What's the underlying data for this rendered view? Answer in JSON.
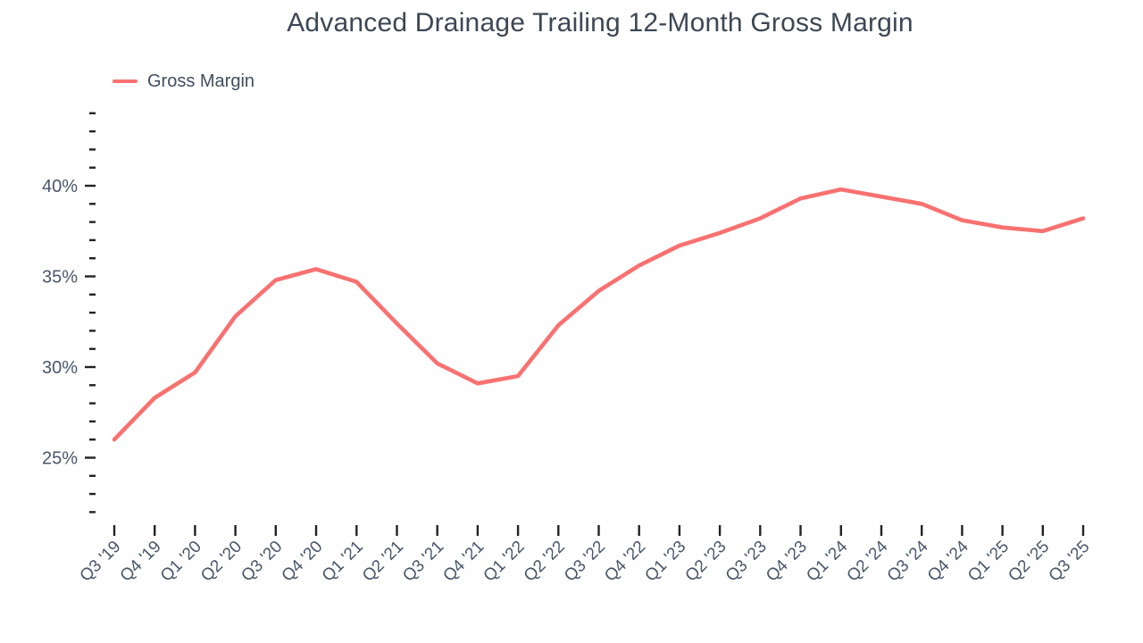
{
  "title": "Advanced Drainage Trailing 12-Month Gross Margin",
  "legend": {
    "label": "Gross Margin",
    "color": "#f87171"
  },
  "colors": {
    "line": "#f87171",
    "title_text": "#3d4754",
    "axis_text": "#49566a",
    "tick": "#222222",
    "background": "#ffffff"
  },
  "chart_data": {
    "type": "line",
    "title": "Advanced Drainage Trailing 12-Month Gross Margin",
    "xlabel": "",
    "ylabel": "",
    "grid": false,
    "legend_position": "top-left",
    "series_name": "Gross Margin",
    "categories": [
      "Q3 '19",
      "Q4 '19",
      "Q1 '20",
      "Q2 '20",
      "Q3 '20",
      "Q4 '20",
      "Q1 '21",
      "Q2 '21",
      "Q3 '21",
      "Q4 '21",
      "Q1 '22",
      "Q2 '22",
      "Q3 '22",
      "Q4 '22",
      "Q1 '23",
      "Q2 '23",
      "Q3 '23",
      "Q4 '23",
      "Q1 '24",
      "Q2 '24",
      "Q3 '24",
      "Q4 '24",
      "Q1 '25",
      "Q2 '25",
      "Q3 '25"
    ],
    "values": [
      26.0,
      28.3,
      29.7,
      32.8,
      34.8,
      35.4,
      34.7,
      32.4,
      30.2,
      29.1,
      29.5,
      32.3,
      34.2,
      35.6,
      36.7,
      37.4,
      38.2,
      39.3,
      39.8,
      39.4,
      39.0,
      38.1,
      37.7,
      37.5,
      38.2
    ],
    "unit": "%",
    "y_ticks_labeled": [
      25,
      30,
      35,
      40
    ],
    "y_tick_labels": [
      "25%",
      "30%",
      "35%",
      "40%"
    ],
    "y_tick_format": "{v}%",
    "y_minor_step": 1,
    "y_tick_range": [
      22,
      44
    ],
    "ylim": [
      21.5,
      44.5
    ]
  }
}
